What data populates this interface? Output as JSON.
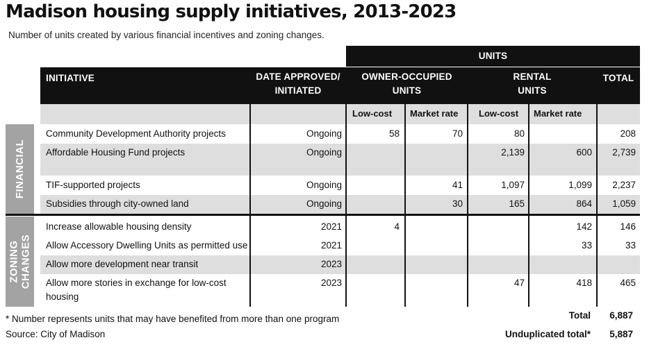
{
  "title": "Madison housing supply initiatives, 2013-2023",
  "subtitle": "Number of units created by various financial incentives and zoning changes.",
  "headers": {
    "units": "UNITS",
    "initiative": "INITIATIVE",
    "date_line1": "DATE APPROVED/",
    "date_line2": "INITIATED",
    "owner_line1": "OWNER-OCCUPIED",
    "owner_line2": "UNITS",
    "rental_line1": "RENTAL",
    "rental_line2": "UNITS",
    "total": "TOTAL",
    "low_cost": "Low-cost",
    "market_rate": "Market rate"
  },
  "sections": {
    "financial": "FINANCIAL",
    "zoning_line1": "ZONING",
    "zoning_line2": "CHANGES"
  },
  "rows": [
    {
      "initiative": "Community Development Authority projects",
      "date": "Ongoing",
      "own_low": "58",
      "own_market": "70",
      "rent_low": "80",
      "rent_market": "",
      "total": "208"
    },
    {
      "initiative": "Affordable Housing Fund projects",
      "date": "Ongoing",
      "own_low": "",
      "own_market": "",
      "rent_low": "2,139",
      "rent_market": "600",
      "total": "2,739"
    },
    {
      "initiative": "TIF-supported projects",
      "date": "Ongoing",
      "own_low": "",
      "own_market": "41",
      "rent_low": "1,097",
      "rent_market": "1,099",
      "total": "2,237"
    },
    {
      "initiative": "Subsidies through city-owned land",
      "date": "Ongoing",
      "own_low": "",
      "own_market": "30",
      "rent_low": "165",
      "rent_market": "864",
      "total": "1,059"
    },
    {
      "initiative": "Increase allowable housing density",
      "date": "2021",
      "own_low": "4",
      "own_market": "",
      "rent_low": "",
      "rent_market": "142",
      "total": "146"
    },
    {
      "initiative": "Allow Accessory Dwelling Units as permitted use",
      "date": "2021",
      "own_low": "",
      "own_market": "",
      "rent_low": "",
      "rent_market": "33",
      "total": "33"
    },
    {
      "initiative": "Allow more development near transit",
      "date": "2023",
      "own_low": "",
      "own_market": "",
      "rent_low": "",
      "rent_market": "",
      "total": ""
    },
    {
      "initiative": "Allow more stories in exchange for low-cost",
      "initiative_line2": "housing",
      "date": "2023",
      "own_low": "",
      "own_market": "",
      "rent_low": "47",
      "rent_market": "418",
      "total": "465"
    }
  ],
  "footer": {
    "note": "* Number represents units that may have benefited from more than one program",
    "source": "Source: City of Madison",
    "total_label": "Total",
    "total_value": "6,887",
    "unduplicated_label": "Unduplicated total*",
    "unduplicated_value": "5,887"
  }
}
